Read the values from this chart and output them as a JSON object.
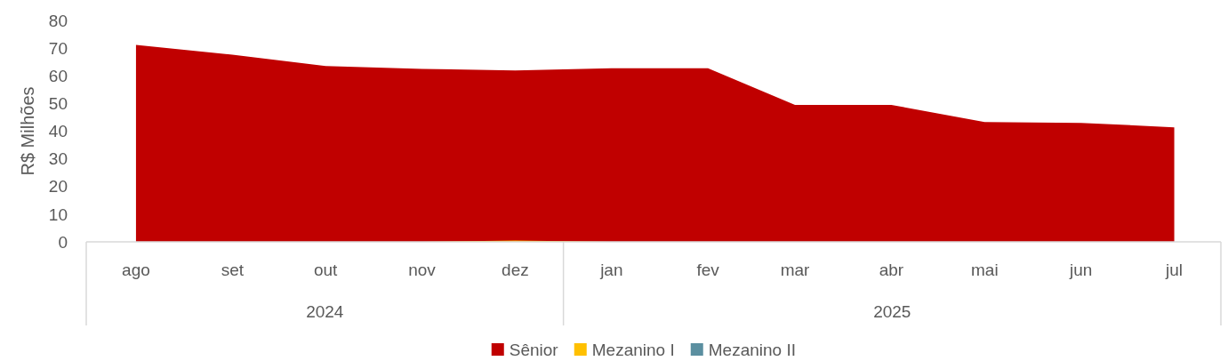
{
  "chart_data": {
    "type": "area",
    "ylabel": "R$ Milhões",
    "x": [
      "2024-08",
      "2024-09",
      "2024-10",
      "2024-11",
      "2024-12",
      "2025-01",
      "2025-02",
      "2025-03",
      "2025-04",
      "2025-05",
      "2025-06",
      "2025-07"
    ],
    "xlim": [
      "2024-07-16",
      "2025-07-16"
    ],
    "xticks": [
      {
        "value": "2024-08",
        "label": "ago"
      },
      {
        "value": "2024-09",
        "label": "set"
      },
      {
        "value": "2024-10",
        "label": "out"
      },
      {
        "value": "2024-11",
        "label": "nov"
      },
      {
        "value": "2024-12",
        "label": "dez"
      },
      {
        "value": "2025-01",
        "label": "jan"
      },
      {
        "value": "2025-02",
        "label": "fev"
      },
      {
        "value": "2025-03",
        "label": "mar"
      },
      {
        "value": "2025-04",
        "label": "abr"
      },
      {
        "value": "2025-05",
        "label": "mai"
      },
      {
        "value": "2025-06",
        "label": "jun"
      },
      {
        "value": "2025-07",
        "label": "jul"
      }
    ],
    "series": [
      {
        "name": "Sênior",
        "color": "#c00000",
        "values": [
          71.2,
          67.6,
          63.5,
          62.5,
          61.9,
          62.7,
          62.7,
          49.5,
          49.5,
          43.3,
          43.0,
          41.4
        ]
      },
      {
        "name": "Mezanino I",
        "color": "#ffc000",
        "values": [
          0,
          0,
          0,
          0,
          0.5,
          0,
          0,
          0,
          0,
          0,
          0,
          0
        ]
      },
      {
        "name": "Mezanino II",
        "color": "#5b8fa0",
        "values": [
          null,
          null,
          null,
          null,
          null,
          null,
          null,
          null,
          null,
          null,
          null,
          null
        ]
      }
    ],
    "annotations": [
      "2024",
      "2025"
    ],
    "ylim": [
      0,
      80
    ],
    "yticks": [
      0,
      10,
      20,
      30,
      40,
      50,
      60,
      70,
      80
    ],
    "grid": false,
    "legend": "bottom"
  }
}
